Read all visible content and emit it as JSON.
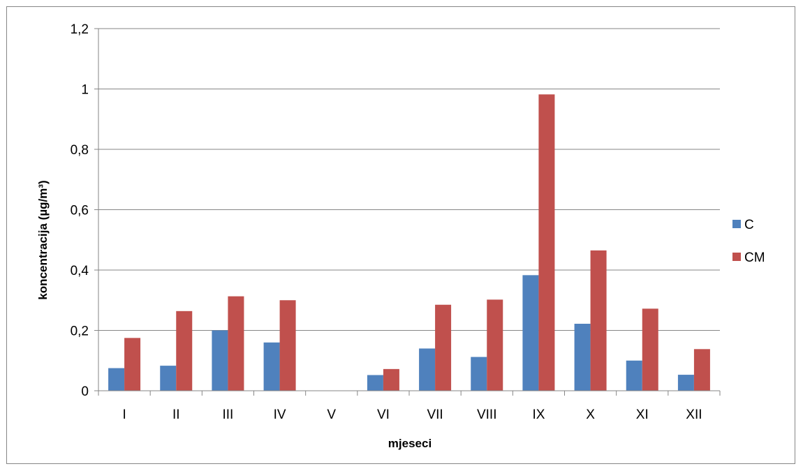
{
  "chart_data": {
    "type": "bar",
    "title": "",
    "xlabel": "mjeseci",
    "ylabel": "koncentracija (µg/m³)",
    "categories": [
      "I",
      "II",
      "III",
      "IV",
      "V",
      "VI",
      "VII",
      "VIII",
      "IX",
      "X",
      "XI",
      "XII"
    ],
    "series": [
      {
        "name": "C",
        "color": "#4f81bd",
        "values": [
          0.075,
          0.083,
          0.2,
          0.16,
          0,
          0.052,
          0.14,
          0.112,
          0.383,
          0.222,
          0.1,
          0.053
        ]
      },
      {
        "name": "CM",
        "color": "#c0504d",
        "values": [
          0.175,
          0.264,
          0.313,
          0.3,
          0,
          0.072,
          0.285,
          0.302,
          0.982,
          0.465,
          0.272,
          0.138
        ]
      }
    ],
    "ylim": [
      0,
      1.2
    ],
    "yticks": [
      0,
      0.2,
      0.4,
      0.6,
      0.8,
      1,
      1.2
    ],
    "ytick_labels": [
      "0",
      "0,2",
      "0,4",
      "0,6",
      "0,8",
      "1",
      "1,2"
    ],
    "grid": true,
    "legend_position": "right"
  }
}
